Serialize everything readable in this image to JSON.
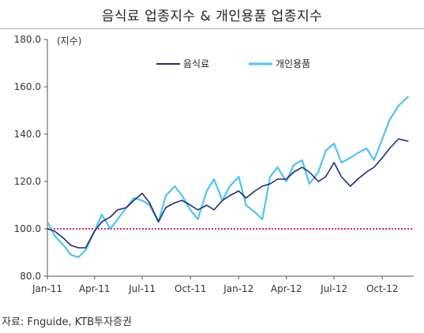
{
  "page_title": "음식료 업종지수 & 개인용품 업종지수",
  "source_note": "자료: Fnguide, KTB투자증권",
  "colors": {
    "food": "#1f2d7a",
    "personal": "#4fc3f0",
    "reference": "#e0207a",
    "axis": "#555555"
  },
  "chart_data": {
    "type": "line",
    "title": "음식료 업종지수 & 개인용품 업종지수",
    "unit_label": "(지수)",
    "ylim": [
      80,
      180
    ],
    "y_ticks": [
      "80.0",
      "100.0",
      "120.0",
      "140.0",
      "160.0",
      "180.0"
    ],
    "x_tick_labels": [
      "Jan-11",
      "Apr-11",
      "Jul-11",
      "Oct-11",
      "Jan-12",
      "Apr-12",
      "Jul-12",
      "Oct-12"
    ],
    "x_tick_dates": [
      "2011-01-01",
      "2011-04-01",
      "2011-07-01",
      "2011-10-01",
      "2012-01-01",
      "2012-04-01",
      "2012-07-01",
      "2012-10-01"
    ],
    "x_range": [
      "2011-01-01",
      "2012-11-30"
    ],
    "reference_line": {
      "y": 100,
      "style": "dotted"
    },
    "grid": false,
    "legend": "top-center",
    "series": [
      {
        "name": "음식료",
        "x": [
          "2011-01-01",
          "2011-01-15",
          "2011-02-01",
          "2011-02-15",
          "2011-03-01",
          "2011-03-15",
          "2011-04-01",
          "2011-04-15",
          "2011-05-01",
          "2011-05-15",
          "2011-06-01",
          "2011-06-15",
          "2011-07-01",
          "2011-07-15",
          "2011-08-01",
          "2011-08-15",
          "2011-09-01",
          "2011-09-15",
          "2011-10-01",
          "2011-10-15",
          "2011-11-01",
          "2011-11-15",
          "2011-12-01",
          "2011-12-15",
          "2012-01-01",
          "2012-01-15",
          "2012-02-01",
          "2012-02-15",
          "2012-03-01",
          "2012-03-15",
          "2012-04-01",
          "2012-04-15",
          "2012-05-01",
          "2012-05-15",
          "2012-06-01",
          "2012-06-15",
          "2012-07-01",
          "2012-07-15",
          "2012-08-01",
          "2012-08-15",
          "2012-09-01",
          "2012-09-15",
          "2012-10-01",
          "2012-10-15",
          "2012-11-01",
          "2012-11-20"
        ],
        "values": [
          100,
          99,
          96,
          93,
          92,
          92,
          99,
          103,
          105,
          108,
          109,
          112,
          115,
          111,
          103,
          109,
          111,
          112,
          110,
          108,
          110,
          108,
          112,
          114,
          116,
          113,
          116,
          118,
          119,
          121,
          121,
          124,
          126,
          124,
          120,
          122,
          128,
          122,
          118,
          121,
          124,
          126,
          130,
          134,
          138,
          137
        ]
      },
      {
        "name": "개인용품",
        "x": [
          "2011-01-01",
          "2011-01-15",
          "2011-02-01",
          "2011-02-15",
          "2011-03-01",
          "2011-03-15",
          "2011-04-01",
          "2011-04-15",
          "2011-05-01",
          "2011-05-15",
          "2011-06-01",
          "2011-06-15",
          "2011-07-01",
          "2011-07-15",
          "2011-08-01",
          "2011-08-15",
          "2011-09-01",
          "2011-09-15",
          "2011-10-01",
          "2011-10-15",
          "2011-11-01",
          "2011-11-15",
          "2011-12-01",
          "2011-12-15",
          "2012-01-01",
          "2012-01-15",
          "2012-02-01",
          "2012-02-15",
          "2012-03-01",
          "2012-03-15",
          "2012-04-01",
          "2012-04-15",
          "2012-05-01",
          "2012-05-15",
          "2012-06-01",
          "2012-06-15",
          "2012-07-01",
          "2012-07-15",
          "2012-08-01",
          "2012-08-15",
          "2012-09-01",
          "2012-09-15",
          "2012-10-01",
          "2012-10-15",
          "2012-11-01",
          "2012-11-20"
        ],
        "values": [
          103,
          97,
          93,
          89,
          88,
          91,
          99,
          106,
          100,
          104,
          109,
          113,
          112,
          110,
          103,
          114,
          118,
          114,
          108,
          104,
          116,
          121,
          112,
          118,
          122,
          110,
          107,
          104,
          122,
          126,
          120,
          127,
          129,
          119,
          124,
          133,
          136,
          128,
          130,
          132,
          134,
          129,
          138,
          146,
          152,
          156
        ]
      }
    ]
  }
}
